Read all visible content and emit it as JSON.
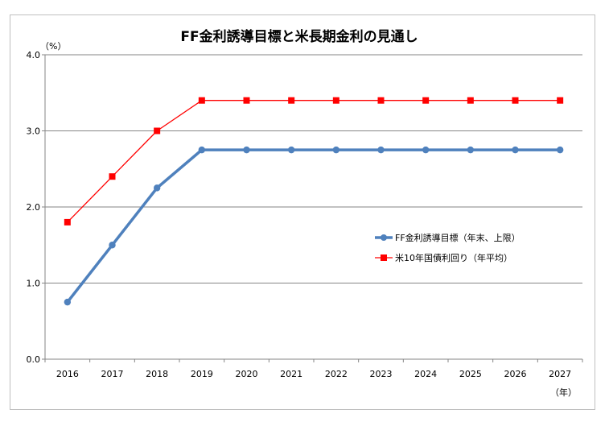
{
  "chart_data": {
    "type": "line",
    "title": "FF金利誘導目標と米長期金利の見通し",
    "y_unit": "（%）",
    "x_unit": "（年）",
    "categories": [
      "2016",
      "2017",
      "2018",
      "2019",
      "2020",
      "2021",
      "2022",
      "2023",
      "2024",
      "2025",
      "2026",
      "2027"
    ],
    "ylim": [
      0.0,
      4.0
    ],
    "yticks": [
      "0.0",
      "1.0",
      "2.0",
      "3.0",
      "4.0"
    ],
    "grid": true,
    "legend_position": "right",
    "series": [
      {
        "name": "FF金利誘導目標（年末、上限）",
        "color": "#4f81bd",
        "marker": "circle",
        "values": [
          0.75,
          1.5,
          2.25,
          2.75,
          2.75,
          2.75,
          2.75,
          2.75,
          2.75,
          2.75,
          2.75,
          2.75
        ]
      },
      {
        "name": "米10年国債利回り（年平均）",
        "color": "#ff0000",
        "marker": "square",
        "values": [
          1.8,
          2.4,
          3.0,
          3.4,
          3.4,
          3.4,
          3.4,
          3.4,
          3.4,
          3.4,
          3.4,
          3.4
        ]
      }
    ]
  }
}
